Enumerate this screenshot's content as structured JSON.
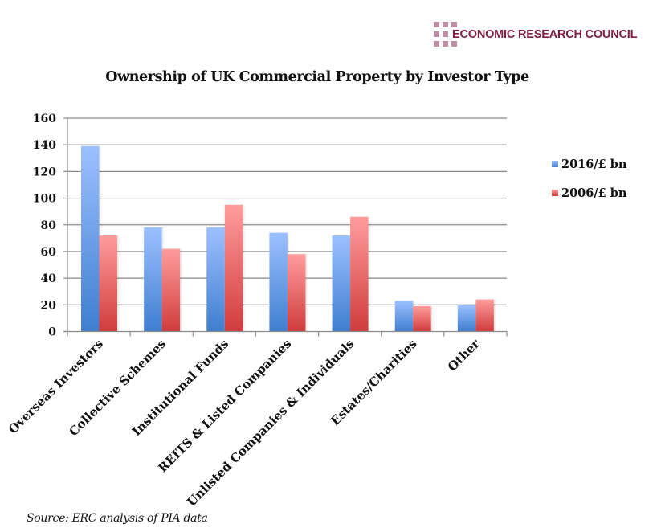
{
  "logo": {
    "text": "ECONOMIC RESEARCH COUNCIL",
    "square_color": "#bd8fa5",
    "text_color": "#7d1f40"
  },
  "source_note": "Source: ERC analysis of PIA data",
  "chart_data": {
    "type": "bar",
    "title": "Ownership of UK Commercial Property by Investor Type",
    "xlabel": "",
    "ylabel": "",
    "ylim": [
      0,
      160
    ],
    "yticks": [
      0,
      20,
      40,
      60,
      80,
      100,
      120,
      140,
      160
    ],
    "grid": true,
    "legend_position": "right",
    "categories": [
      "Overseas Investors",
      "Collective Schemes",
      "Institutional Funds",
      "REITS & Listed Companies",
      "Unlisted Companies & Individuals",
      "Estates/Charities",
      "Other"
    ],
    "series": [
      {
        "name": "2016/£ bn",
        "values": [
          139,
          78,
          78,
          74,
          72,
          23,
          20
        ],
        "color_top": "#9cc0ff",
        "color_bottom": "#3f7ed0"
      },
      {
        "name": "2006/£ bn",
        "values": [
          72,
          62,
          95,
          58,
          86,
          19,
          24
        ],
        "color_top": "#ff9c9c",
        "color_bottom": "#d03c3c"
      }
    ]
  }
}
